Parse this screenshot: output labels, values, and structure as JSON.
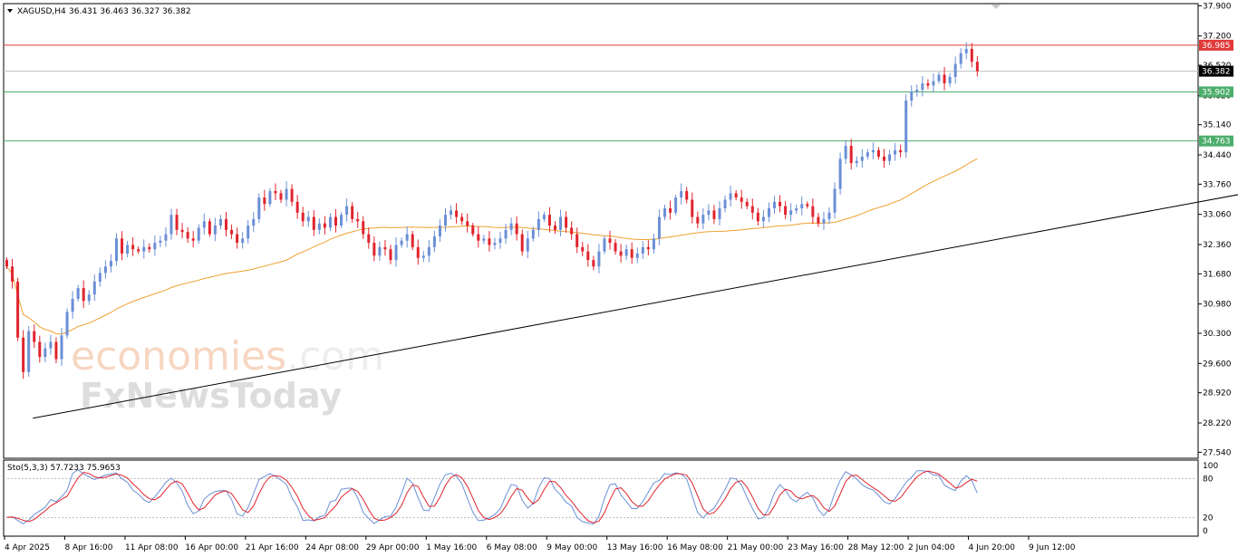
{
  "header": {
    "symbol": "XAGUSD,H4",
    "ohlc": "36.431 36.463 36.327 36.382",
    "stoch_label": "Sto(5,3,3) 57.7233 75.9653"
  },
  "watermark": {
    "brand_part1": "economies",
    "brand_part2": ".com",
    "brand_line2": "FxNewsToday"
  },
  "colors": {
    "bull": "#6b8fd6",
    "bear": "#e0242d",
    "ma": "#f0a030",
    "resistance": "#e23a3a",
    "support": "#4cae6b",
    "stoch_main": "#6b8fd6",
    "stoch_signal": "#e0242d"
  },
  "chart_data": {
    "type": "candlestick",
    "symbol": "XAGUSD",
    "timeframe": "H4",
    "y_ticks": [
      "37.900",
      "37.200",
      "36.520",
      "35.820",
      "35.140",
      "34.440",
      "33.760",
      "33.060",
      "32.360",
      "31.680",
      "30.980",
      "30.300",
      "29.600",
      "28.920",
      "28.220",
      "27.540"
    ],
    "ylim": [
      27.4,
      37.95
    ],
    "x_ticks": [
      "4 Apr 2025",
      "8 Apr 16:00",
      "11 Apr 08:00",
      "16 Apr 00:00",
      "21 Apr 16:00",
      "24 Apr 08:00",
      "29 Apr 00:00",
      "1 May 16:00",
      "6 May 08:00",
      "9 May 00:00",
      "13 May 16:00",
      "16 May 08:00",
      "21 May 00:00",
      "23 May 16:00",
      "28 May 12:00",
      "2 Jun 04:00",
      "4 Jun 20:00",
      "9 Jun 12:00"
    ],
    "current_price": {
      "value": 36.382,
      "label": "36.382"
    },
    "horizontal_lines": [
      {
        "value": 36.985,
        "label": "36.985",
        "role": "resistance"
      },
      {
        "value": 35.902,
        "label": "35.902",
        "role": "support"
      },
      {
        "value": 34.763,
        "label": "34.763",
        "role": "support"
      }
    ],
    "trendline": {
      "start": {
        "bar": 5,
        "price": 28.33
      },
      "end": {
        "bar": 255,
        "price": 34.23
      }
    },
    "closes": [
      31.85,
      31.5,
      30.2,
      29.4,
      30.35,
      30.1,
      29.75,
      29.95,
      30.1,
      29.7,
      30.25,
      30.8,
      31.1,
      31.35,
      31.05,
      31.2,
      31.5,
      31.7,
      31.85,
      31.98,
      32.5,
      32.15,
      32.35,
      32.25,
      32.2,
      32.3,
      32.25,
      32.4,
      32.45,
      32.6,
      33.05,
      32.7,
      32.65,
      32.5,
      32.45,
      32.75,
      32.9,
      32.6,
      32.8,
      32.95,
      32.7,
      32.6,
      32.4,
      32.5,
      32.8,
      32.95,
      33.45,
      33.3,
      33.6,
      33.55,
      33.4,
      33.65,
      33.35,
      33.1,
      32.9,
      33.0,
      32.7,
      32.85,
      32.75,
      33.0,
      32.8,
      33.05,
      33.25,
      32.95,
      32.9,
      32.6,
      32.4,
      32.1,
      32.3,
      32.25,
      32.0,
      32.35,
      32.45,
      32.6,
      32.3,
      32.05,
      32.1,
      32.3,
      32.55,
      32.8,
      33.05,
      33.15,
      33.0,
      32.9,
      32.8,
      32.6,
      32.45,
      32.5,
      32.35,
      32.4,
      32.5,
      32.7,
      32.85,
      32.6,
      32.2,
      32.5,
      32.7,
      32.95,
      33.05,
      32.8,
      32.7,
      33.0,
      32.75,
      32.6,
      32.3,
      32.2,
      32.0,
      31.85,
      32.2,
      32.5,
      32.4,
      32.2,
      32.1,
      32.25,
      32.05,
      32.15,
      32.3,
      32.25,
      32.5,
      33.0,
      33.2,
      33.1,
      33.45,
      33.6,
      33.4,
      33.0,
      32.85,
      33.05,
      33.15,
      32.95,
      33.2,
      33.4,
      33.55,
      33.45,
      33.35,
      33.25,
      33.1,
      32.9,
      33.0,
      33.2,
      33.35,
      33.25,
      33.05,
      33.15,
      33.2,
      33.3,
      33.25,
      33.0,
      32.85,
      32.95,
      33.1,
      33.65,
      34.35,
      34.65,
      34.25,
      34.3,
      34.4,
      34.5,
      34.55,
      34.4,
      34.3,
      34.45,
      34.55,
      34.5,
      35.7,
      35.9,
      35.95,
      36.1,
      36.05,
      36.15,
      36.3,
      36.1,
      36.25,
      36.55,
      36.8,
      36.9,
      36.6,
      36.382
    ],
    "ma_period": 50,
    "stochastic": {
      "params": "5,3,3",
      "main_last": 57.7233,
      "signal_last": 75.9653,
      "y_ticks": [
        "100",
        "80",
        "20",
        "0"
      ],
      "levels": [
        20,
        80
      ],
      "ylim": [
        0,
        100
      ]
    }
  }
}
